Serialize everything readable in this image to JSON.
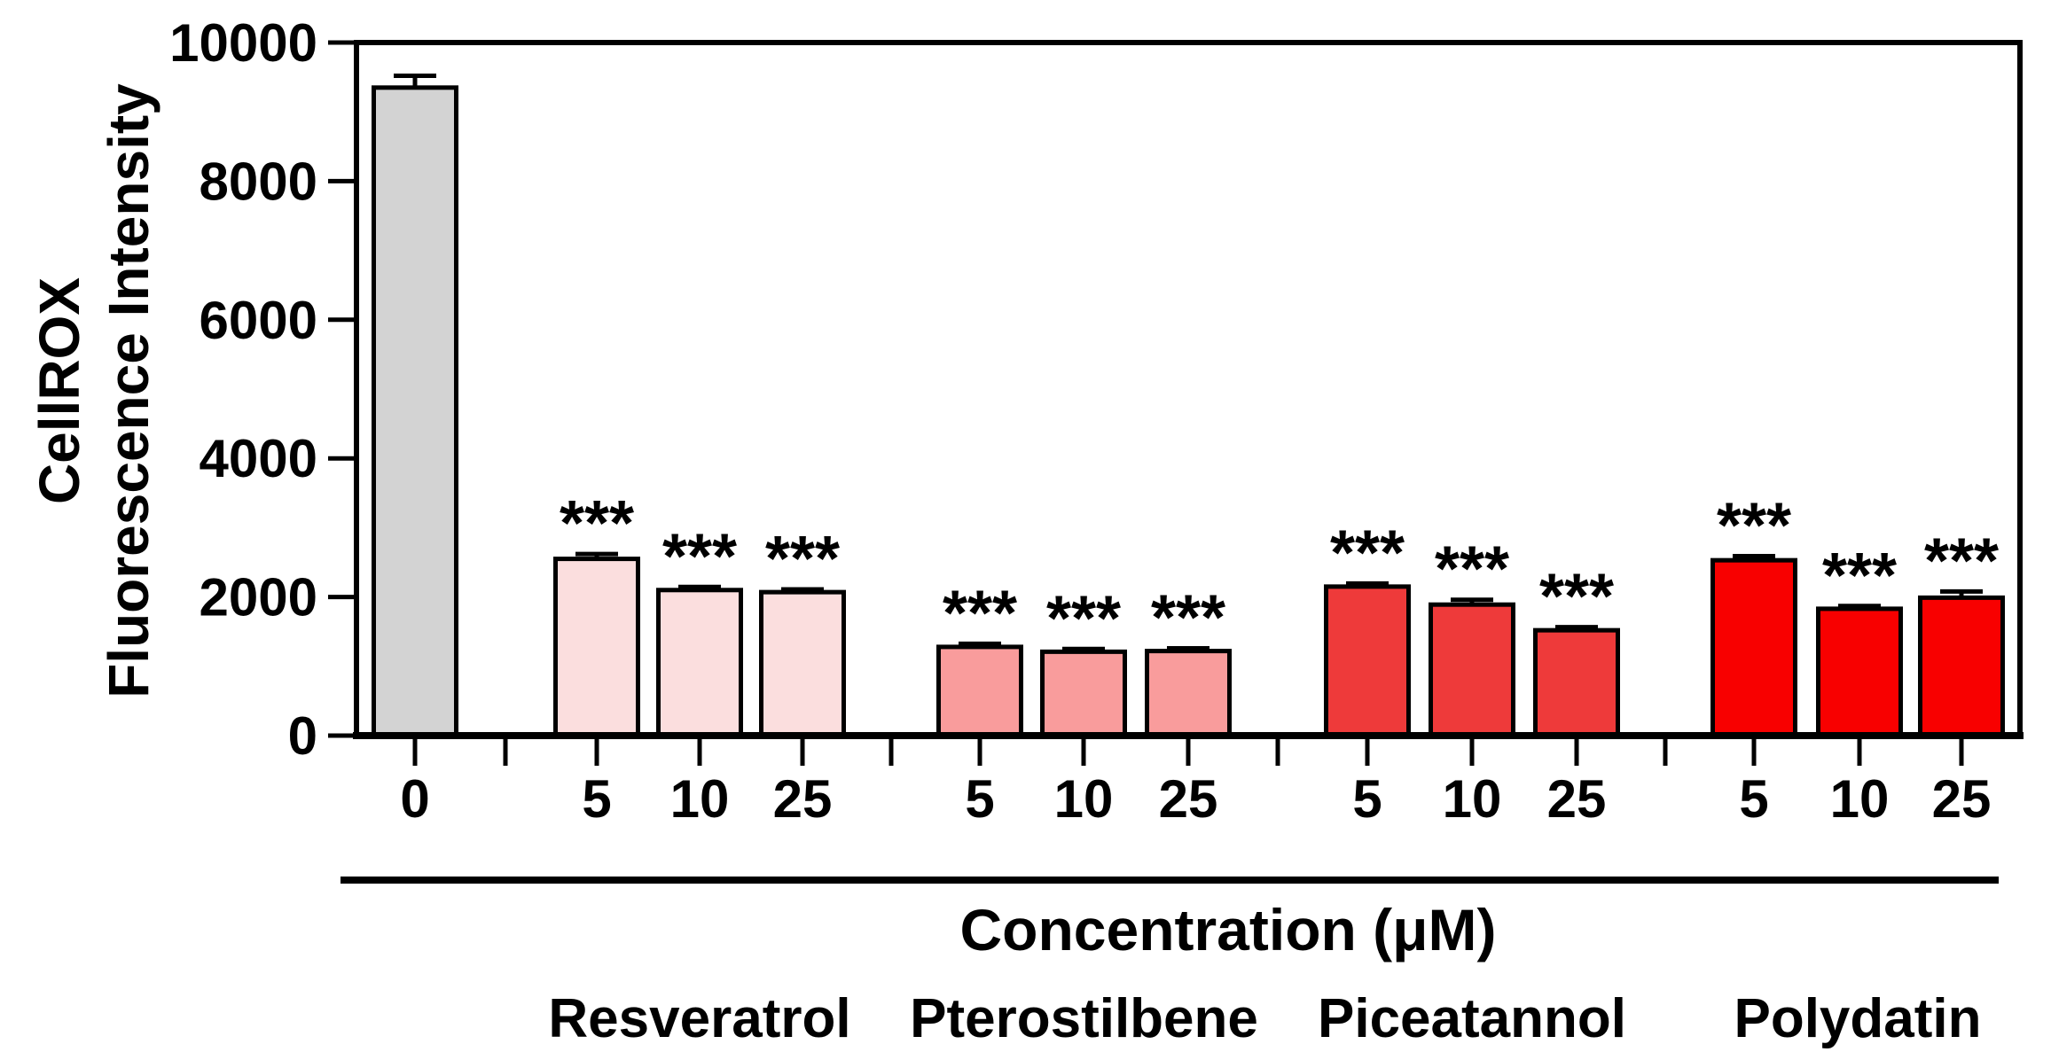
{
  "figure": {
    "y_axis": {
      "title_line1": "CellROX",
      "title_line2": "Fluorescence Intensity"
    },
    "x_axis": {
      "title": "Concentration (μM)"
    }
  },
  "chart_data": {
    "type": "bar",
    "title": "",
    "ylabel": "CellROX Fluorescence Intensity",
    "xlabel": "Concentration (μM)",
    "ylim": [
      0,
      10000
    ],
    "yticks": [
      0,
      2000,
      4000,
      6000,
      8000,
      10000
    ],
    "grid": false,
    "legend": "none",
    "error_direction": "upper",
    "groups": [
      {
        "name": "",
        "color": "#d3d3d3",
        "bars": [
          {
            "label": "0",
            "value": 9350,
            "error": 170,
            "significance": ""
          }
        ]
      },
      {
        "name": "Resveratrol",
        "color": "#fbdede",
        "bars": [
          {
            "label": "5",
            "value": 2550,
            "error": 70,
            "significance": "***"
          },
          {
            "label": "10",
            "value": 2100,
            "error": 45,
            "significance": "***"
          },
          {
            "label": "25",
            "value": 2070,
            "error": 40,
            "significance": "***"
          }
        ]
      },
      {
        "name": "Pterostilbene",
        "color": "#f99c9c",
        "bars": [
          {
            "label": "5",
            "value": 1280,
            "error": 45,
            "significance": "***"
          },
          {
            "label": "10",
            "value": 1210,
            "error": 40,
            "significance": "***"
          },
          {
            "label": "25",
            "value": 1220,
            "error": 40,
            "significance": "***"
          }
        ]
      },
      {
        "name": "Piceatannol",
        "color": "#ee3a3a",
        "bars": [
          {
            "label": "5",
            "value": 2150,
            "error": 45,
            "significance": "***"
          },
          {
            "label": "10",
            "value": 1890,
            "error": 70,
            "significance": "***"
          },
          {
            "label": "25",
            "value": 1520,
            "error": 45,
            "significance": "***"
          }
        ]
      },
      {
        "name": "Polydatin",
        "color": "#f80000",
        "bars": [
          {
            "label": "5",
            "value": 2530,
            "error": 60,
            "significance": "***"
          },
          {
            "label": "10",
            "value": 1830,
            "error": 40,
            "significance": "***"
          },
          {
            "label": "25",
            "value": 1990,
            "error": 90,
            "significance": "***"
          }
        ]
      }
    ]
  }
}
